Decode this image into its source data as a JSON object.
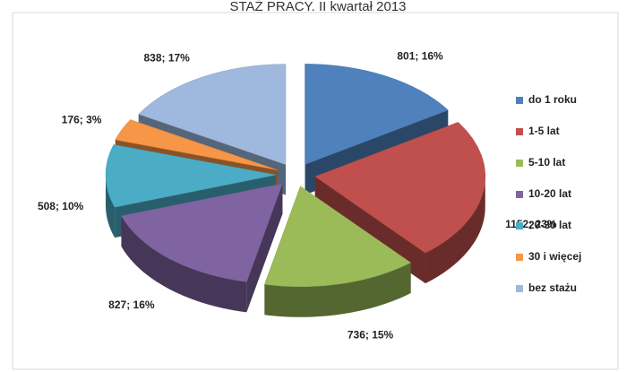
{
  "chart_data": {
    "type": "pie",
    "title": "STAŻ PRACY. II kwartał 2013",
    "categories": [
      "do 1 roku",
      "1-5 lat",
      "5-10 lat",
      "10-20 lat",
      "20-30 lat",
      "30 i więcej",
      "bez stażu"
    ],
    "values": [
      801,
      1152,
      736,
      827,
      508,
      176,
      838
    ],
    "value_labels": [
      "801; 16%",
      "1152; 23%",
      "736; 15%",
      "827; 16%",
      "508; 10%",
      "176; 3%",
      "838; 17%"
    ],
    "colors": [
      "#4f81bd",
      "#c0504d",
      "#9bbb59",
      "#8064a2",
      "#4bacc6",
      "#f79646",
      "#9fb8dd"
    ],
    "legend": "right"
  }
}
